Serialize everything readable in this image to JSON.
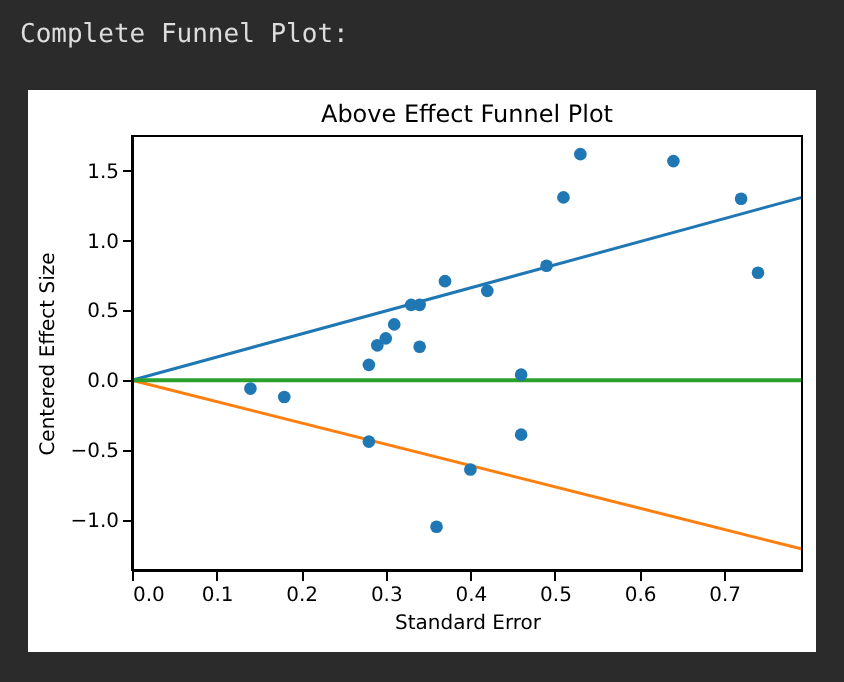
{
  "chart_data": {
    "type": "scatter",
    "title": "Above Effect Funnel Plot",
    "xlabel": "Standard Error",
    "ylabel": "Centered Effect Size",
    "annotations": [
      "Complete Funnel Plot:"
    ],
    "xlim": [
      0,
      0.792
    ],
    "ylim": [
      -1.36,
      1.75
    ],
    "xticks": [
      {
        "value": 0,
        "label": "0.0"
      },
      {
        "value": 0.1,
        "label": "0.1"
      },
      {
        "value": 0.2,
        "label": "0.2"
      },
      {
        "value": 0.3,
        "label": "0.3"
      },
      {
        "value": 0.4,
        "label": "0.4"
      },
      {
        "value": 0.5,
        "label": "0.5"
      },
      {
        "value": 0.6,
        "label": "0.6"
      },
      {
        "value": 0.7,
        "label": "0.7"
      }
    ],
    "yticks": [
      {
        "value": -1,
        "label": "−1.0"
      },
      {
        "value": -0.5,
        "label": "−0.5"
      },
      {
        "value": 0,
        "label": "0.0"
      },
      {
        "value": 0.5,
        "label": "0.5"
      },
      {
        "value": 1,
        "label": "1.0"
      },
      {
        "value": 1.5,
        "label": "1.5"
      }
    ],
    "grid": false,
    "series": [
      {
        "type": "line",
        "color": "#1f77b4",
        "x": [
          0,
          0.792
        ],
        "values": [
          0,
          1.31
        ]
      },
      {
        "type": "line",
        "color": "#ff7f0e",
        "x": [
          0,
          0.792
        ],
        "values": [
          0,
          -1.21
        ]
      },
      {
        "type": "line",
        "color": "#2ca02c",
        "x": [
          0,
          0.792
        ],
        "values": [
          0,
          0
        ]
      },
      {
        "color": "#1f77b4",
        "marker": "circle",
        "x": [
          0.14,
          0.18,
          0.28,
          0.28,
          0.29,
          0.3,
          0.31,
          0.33,
          0.34,
          0.34,
          0.37,
          0.36,
          0.4,
          0.42,
          0.46,
          0.46,
          0.49,
          0.51,
          0.53,
          0.64,
          0.72,
          0.74
        ],
        "values": [
          -0.06,
          -0.12,
          0.11,
          -0.44,
          0.25,
          0.3,
          0.4,
          0.54,
          0.54,
          0.24,
          0.71,
          -1.05,
          -0.64,
          0.64,
          0.04,
          -0.39,
          0.82,
          1.31,
          1.62,
          1.57,
          1.3,
          0.77
        ]
      }
    ]
  }
}
